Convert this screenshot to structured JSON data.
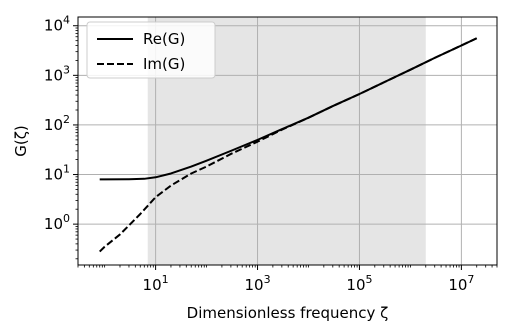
{
  "chart_data": {
    "type": "line",
    "xlabel": "Dimensionless frequency ζ",
    "ylabel": "G(ζ)",
    "xscale": "log",
    "yscale": "log",
    "xlim": [
      0.3,
      50000000
    ],
    "ylim": [
      0.15,
      15000
    ],
    "grid": true,
    "legend_position": "top-left",
    "shaded_region": {
      "x_start": 7,
      "x_end": 2000000,
      "color": "#e5e5e5"
    },
    "x_ticks": [
      {
        "value": 10,
        "base": "10",
        "exp": "1"
      },
      {
        "value": 1000,
        "base": "10",
        "exp": "3"
      },
      {
        "value": 100000,
        "base": "10",
        "exp": "5"
      },
      {
        "value": 10000000,
        "base": "10",
        "exp": "7"
      }
    ],
    "y_ticks": [
      {
        "value": 1,
        "base": "10",
        "exp": "0"
      },
      {
        "value": 10,
        "base": "10",
        "exp": "1"
      },
      {
        "value": 100,
        "base": "10",
        "exp": "2"
      },
      {
        "value": 1000,
        "base": "10",
        "exp": "3"
      },
      {
        "value": 10000,
        "base": "10",
        "exp": "4"
      }
    ],
    "series": [
      {
        "name": "Re(G)",
        "style": "solid",
        "color": "#000000",
        "points": [
          [
            0.8,
            8.0
          ],
          [
            1,
            8.0
          ],
          [
            3,
            8.05
          ],
          [
            6,
            8.2
          ],
          [
            10,
            8.8
          ],
          [
            20,
            10.5
          ],
          [
            50,
            14.5
          ],
          [
            100,
            19
          ],
          [
            300,
            30
          ],
          [
            1000,
            50
          ],
          [
            3000,
            82
          ],
          [
            10000,
            140
          ],
          [
            30000,
            240
          ],
          [
            100000,
            420
          ],
          [
            300000,
            720
          ],
          [
            1000000,
            1300
          ],
          [
            3000000,
            2250
          ],
          [
            10000000,
            4000
          ],
          [
            20000000,
            5600
          ]
        ]
      },
      {
        "name": "Im(G)",
        "style": "dashed",
        "color": "#000000",
        "points": [
          [
            0.8,
            0.28
          ],
          [
            1,
            0.35
          ],
          [
            2,
            0.62
          ],
          [
            5,
            1.6
          ],
          [
            10,
            3.5
          ],
          [
            20,
            6.0
          ],
          [
            50,
            10.5
          ],
          [
            100,
            14.5
          ],
          [
            300,
            26
          ],
          [
            1000,
            46
          ],
          [
            3000,
            80
          ],
          [
            10000,
            140
          ],
          [
            30000,
            240
          ],
          [
            100000,
            420
          ],
          [
            300000,
            720
          ],
          [
            1000000,
            1300
          ],
          [
            3000000,
            2250
          ],
          [
            10000000,
            4000
          ],
          [
            20000000,
            5600
          ]
        ]
      }
    ]
  }
}
